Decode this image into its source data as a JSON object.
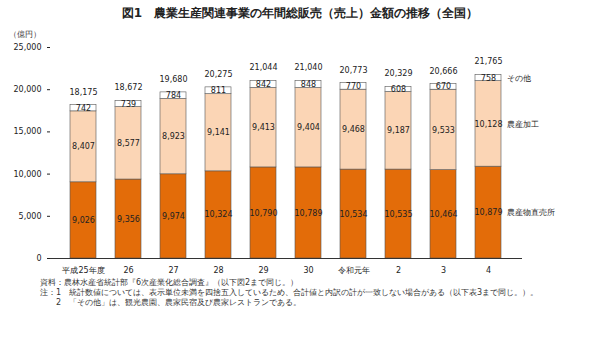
{
  "chart_data": {
    "type": "bar",
    "stacked": true,
    "title": "図1　農業生産関連事業の年間総販売（売上）金額の推移（全国）",
    "ylabel": "（億円）",
    "categories": [
      "平成25年度",
      "26",
      "27",
      "28",
      "29",
      "30",
      "令和元年",
      "2",
      "3",
      "4"
    ],
    "series": [
      {
        "name": "農産物直売所",
        "color": "#e36c09",
        "values": [
          9026,
          9356,
          9974,
          10324,
          10790,
          10789,
          10534,
          10535,
          10464,
          10879
        ],
        "value_labels": [
          "9,026",
          "9,356",
          "9,974",
          "10,324",
          "10,790",
          "10,789",
          "10,534",
          "10,535",
          "10,464",
          "10,879"
        ]
      },
      {
        "name": "農産加工",
        "color": "#fbd5b5",
        "values": [
          8407,
          8577,
          8923,
          9141,
          9413,
          9404,
          9468,
          9187,
          9533,
          10128
        ],
        "value_labels": [
          "8,407",
          "8,577",
          "8,923",
          "9,141",
          "9,413",
          "9,404",
          "9,468",
          "9,187",
          "9,533",
          "10,128"
        ]
      },
      {
        "name": "その他",
        "color": "#ffffff",
        "values": [
          742,
          739,
          784,
          811,
          842,
          848,
          770,
          608,
          670,
          758
        ]
      }
    ],
    "totals": [
      18175,
      18672,
      19680,
      20275,
      21044,
      21040,
      20773,
      20329,
      20666,
      21765
    ],
    "total_labels": [
      "18,175",
      "18,672",
      "19,680",
      "20,275",
      "21,044",
      "21,040",
      "20,773",
      "20,329",
      "20,666",
      "21,765"
    ],
    "ylim": [
      0,
      25000
    ],
    "yticks": [
      0,
      {
        "value": 5000,
        "label": "5,000"
      },
      {
        "value": 10000,
        "label": "10,000"
      },
      {
        "value": 15000,
        "label": "15,000"
      },
      {
        "value": 20000,
        "label": "20,000"
      },
      {
        "value": 25000,
        "label": "25,000"
      }
    ],
    "grid": false,
    "data_labels": true,
    "legend": "right",
    "notes": [
      "資料：農林水産省統計部『6次産業化総合調査』（以下図2まで同じ。）",
      "注：1　統計数値については、表示単位未満を四捨五入しているため、合計値と内訳の計が一致しない場合がある（以下表3まで同じ。）。",
      "　　2　「その他」は、観光農園、農家民宿及び農家レストランである。"
    ]
  }
}
